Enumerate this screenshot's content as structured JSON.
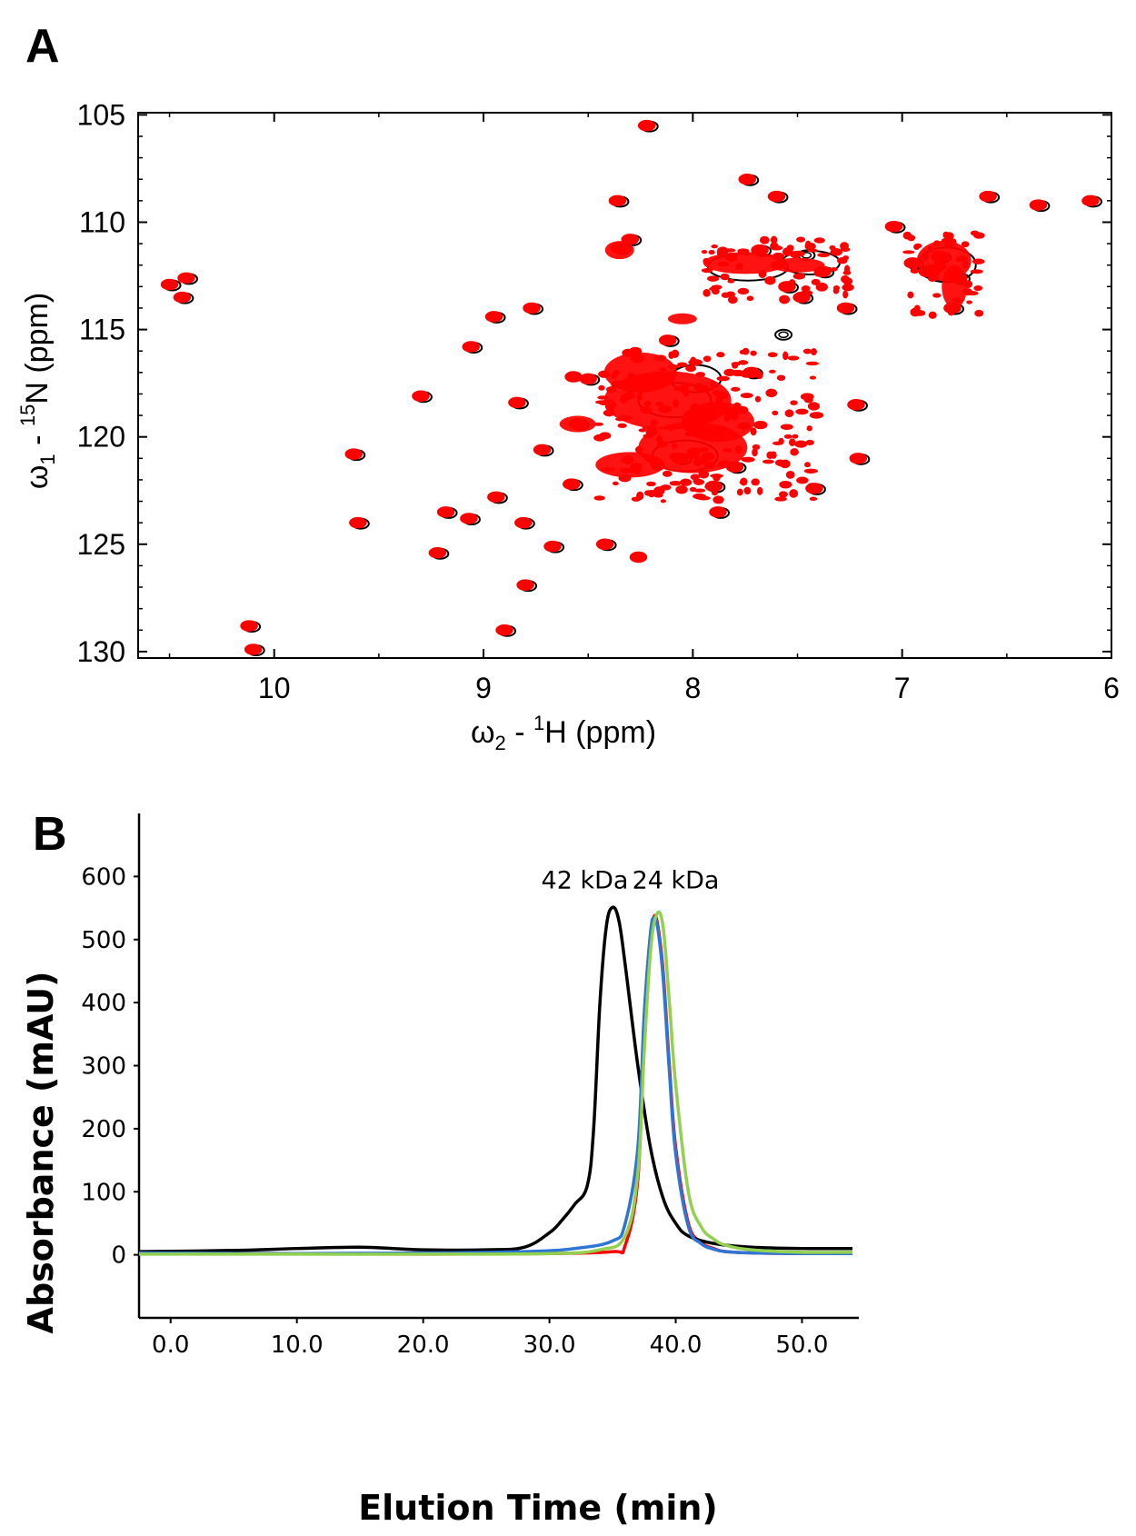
{
  "panels": {
    "a": "A",
    "b": "B"
  },
  "chart_data": [
    {
      "type": "scatter",
      "panel": "A",
      "xlabel": "ω2 - 1H  (ppm)",
      "ylabel": "ω1 - 15N  (ppm)",
      "xlim": [
        10.65,
        6.0
      ],
      "ylim": [
        130.3,
        104.9
      ],
      "x_inverted": true,
      "y_inverted": true,
      "x_ticks": [
        "10",
        "9",
        "8",
        "7",
        "6"
      ],
      "y_ticks": [
        "105",
        "110",
        "115",
        "120",
        "125",
        "130"
      ],
      "series": [
        {
          "color": "#000000",
          "x": [
            10.5,
            10.42,
            10.44,
            10.12,
            10.1,
            9.62,
            9.6,
            9.3,
            9.22,
            9.18,
            9.07,
            9.06,
            8.95,
            8.94,
            8.9,
            8.84,
            8.81,
            8.8,
            8.77,
            8.72,
            8.67,
            8.58,
            8.55,
            8.5,
            8.42,
            8.36,
            8.35,
            8.3,
            8.22,
            8.12,
            8.06,
            8.0,
            7.9,
            7.88,
            7.8,
            7.74,
            7.72,
            7.68,
            7.6,
            7.55,
            7.48,
            7.42,
            7.38,
            7.27,
            7.21,
            7.22,
            7.04,
            6.95,
            6.88,
            6.82,
            6.76,
            6.73,
            6.59,
            6.35,
            6.1,
            7.58,
            7.47
          ],
          "y": [
            112.9,
            112.6,
            113.5,
            128.8,
            129.9,
            120.8,
            124.0,
            118.1,
            125.4,
            123.5,
            123.8,
            115.8,
            114.4,
            122.8,
            129.0,
            118.4,
            124.0,
            126.9,
            114.0,
            120.6,
            125.1,
            122.2,
            119.4,
            117.3,
            125.0,
            109.0,
            111.2,
            110.8,
            105.5,
            115.5,
            121.0,
            119.0,
            122.3,
            123.5,
            121.4,
            108.0,
            117.0,
            111.3,
            108.8,
            113.0,
            113.5,
            122.4,
            112.3,
            114.0,
            121.0,
            118.5,
            110.2,
            111.9,
            112.3,
            111.6,
            114.0,
            112.6,
            108.8,
            109.2,
            109.0,
            115.2,
            111.5
          ]
        },
        {
          "color": "#ff0000",
          "x": [
            10.5,
            10.42,
            10.44,
            10.12,
            10.1,
            9.62,
            9.6,
            9.3,
            9.22,
            9.18,
            9.07,
            9.06,
            8.95,
            8.94,
            8.9,
            8.84,
            8.81,
            8.8,
            8.77,
            8.72,
            8.67,
            8.58,
            8.55,
            8.5,
            8.42,
            8.36,
            8.35,
            8.3,
            8.22,
            8.12,
            8.06,
            8.0,
            7.9,
            7.88,
            7.8,
            7.74,
            7.72,
            7.68,
            7.6,
            7.55,
            7.48,
            7.42,
            7.38,
            7.27,
            7.21,
            7.22,
            7.04,
            6.95,
            6.88,
            6.82,
            6.76,
            6.73,
            6.59,
            6.35,
            6.1,
            8.57,
            8.26
          ],
          "y": [
            112.9,
            112.6,
            113.5,
            128.8,
            129.9,
            120.8,
            124.0,
            118.1,
            125.4,
            123.5,
            123.8,
            115.8,
            114.4,
            122.8,
            129.0,
            118.4,
            124.0,
            126.9,
            114.0,
            120.6,
            125.1,
            122.2,
            119.4,
            117.3,
            125.0,
            109.0,
            111.2,
            110.8,
            105.5,
            115.5,
            121.0,
            119.0,
            122.3,
            123.5,
            121.4,
            108.0,
            117.0,
            111.3,
            108.8,
            113.0,
            113.5,
            122.4,
            112.3,
            114.0,
            121.0,
            118.5,
            110.2,
            111.9,
            112.3,
            111.6,
            114.0,
            112.6,
            108.8,
            109.2,
            109.0,
            117.2,
            125.6
          ]
        }
      ]
    },
    {
      "type": "line",
      "panel": "B",
      "xlabel": "Elution Time (min)",
      "ylabel": "Absorbance (mAU)",
      "xlim": [
        -2.5,
        54.5
      ],
      "ylim": [
        -100,
        700
      ],
      "x_ticks": [
        "0.0",
        "10.0",
        "20.0",
        "30.0",
        "40.0",
        "50.0"
      ],
      "y_ticks": [
        "0",
        "100",
        "200",
        "300",
        "400",
        "500",
        "600"
      ],
      "annotations": [
        {
          "text": "42 kDa",
          "x": 32.8,
          "y": 600
        },
        {
          "text": "24 kDa",
          "x": 40.0,
          "y": 600
        }
      ],
      "series": [
        {
          "color": "#000000",
          "x": [
            -2.5,
            5,
            10,
            15,
            20,
            25,
            28,
            30,
            31,
            32,
            33,
            33.5,
            34,
            34.5,
            35,
            35.5,
            36,
            37,
            38,
            39,
            40,
            41,
            43,
            46,
            50,
            54
          ],
          "y": [
            5,
            7,
            10,
            12,
            8,
            8,
            12,
            35,
            55,
            80,
            110,
            200,
            400,
            520,
            551,
            530,
            460,
            300,
            170,
            90,
            50,
            30,
            18,
            12,
            10,
            10
          ]
        },
        {
          "color": "#ff0000",
          "x": [
            -2.5,
            10,
            20,
            30,
            35,
            36,
            37,
            37.5,
            38,
            38.3,
            38.6,
            39,
            39.5,
            40,
            41,
            42,
            43,
            44,
            46,
            50,
            54
          ],
          "y": [
            3,
            2,
            1,
            2,
            5,
            15,
            120,
            350,
            500,
            537,
            520,
            450,
            300,
            170,
            50,
            20,
            10,
            5,
            3,
            2,
            2
          ]
        },
        {
          "color": "#2e75d6",
          "x": [
            -2.5,
            10,
            20,
            28,
            32,
            35,
            36,
            37,
            37.5,
            38,
            38.3,
            38.6,
            39,
            39.5,
            40,
            41,
            42,
            43,
            44,
            46,
            50,
            54
          ],
          "y": [
            3,
            2,
            3,
            5,
            10,
            22,
            50,
            170,
            380,
            510,
            535,
            515,
            440,
            290,
            160,
            45,
            18,
            9,
            5,
            3,
            2,
            2
          ]
        },
        {
          "color": "#92d050",
          "x": [
            -2.5,
            10,
            20,
            30,
            34,
            36,
            37,
            37.5,
            38,
            38.5,
            39,
            39.5,
            40,
            41,
            42,
            43,
            44,
            46,
            50,
            54
          ],
          "y": [
            1,
            1,
            1,
            2,
            8,
            30,
            130,
            320,
            480,
            540,
            520,
            400,
            270,
            100,
            45,
            25,
            15,
            8,
            4,
            4
          ]
        }
      ]
    }
  ]
}
